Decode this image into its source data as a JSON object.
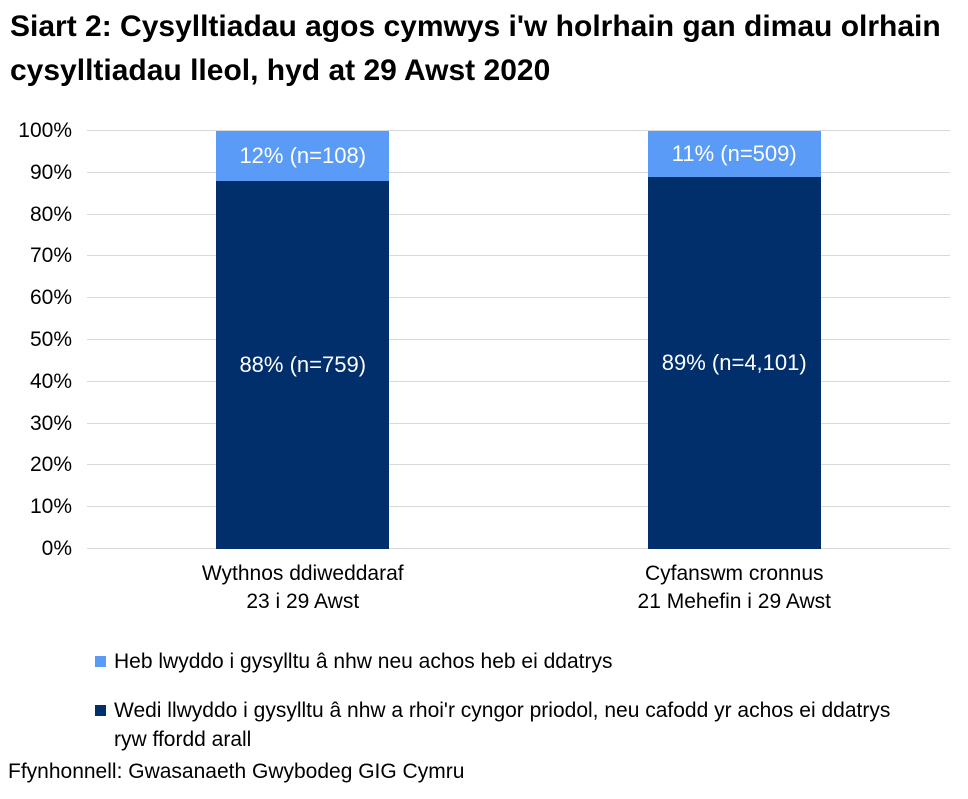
{
  "title": "Siart 2: Cysylltiadau agos cymwys i'w holrhain gan dimau olrhain cysylltiadau lleol, hyd at 29 Awst 2020",
  "source": "Ffynhonnell: Gwasanaeth Gwybodeg GIG Cymru",
  "colors": {
    "dark_blue": "#002F6C",
    "light_blue": "#5A9BF8",
    "gridline": "#D9D9D9",
    "bar_label_text": "#FFFFFF",
    "text": "#000000"
  },
  "chart_data": {
    "type": "bar",
    "stacked": true,
    "title": "Siart 2: Cysylltiadau agos cymwys i'w holrhain gan dimau olrhain cysylltiadau lleol, hyd at 29 Awst 2020",
    "categories": [
      {
        "line1": "Wythnos ddiweddaraf",
        "line2": "23 i 29 Awst"
      },
      {
        "line1": "Cyfanswm cronnus",
        "line2": "21 Mehefin i 29 Awst"
      }
    ],
    "series": [
      {
        "name": "Wedi llwyddo i gysylltu â nhw a rhoi'r cyngor priodol, neu cafodd yr achos ei ddatrys ryw ffordd arall",
        "color_key": "dark_blue",
        "values": [
          88,
          89
        ],
        "counts": [
          759,
          4101
        ],
        "labels": [
          "88% (n=759)",
          "89% (n=4,101)"
        ]
      },
      {
        "name": "Heb lwyddo i gysylltu â nhw neu achos heb ei ddatrys",
        "color_key": "light_blue",
        "values": [
          12,
          11
        ],
        "counts": [
          108,
          509
        ],
        "labels": [
          "12% (n=108)",
          "11% (n=509)"
        ]
      }
    ],
    "y_axis": {
      "min": 0,
      "max": 100,
      "step": 10,
      "ticks": [
        "0%",
        "10%",
        "20%",
        "30%",
        "40%",
        "50%",
        "60%",
        "70%",
        "80%",
        "90%",
        "100%"
      ]
    },
    "grid": true,
    "legend_position": "bottom",
    "legend": [
      {
        "label": "Heb lwyddo i gysylltu â nhw neu achos heb ei ddatrys",
        "color_key": "light_blue"
      },
      {
        "label": "Wedi llwyddo i gysylltu â nhw a rhoi'r cyngor priodol, neu cafodd yr achos ei ddatrys ryw ffordd arall",
        "color_key": "dark_blue"
      }
    ]
  }
}
